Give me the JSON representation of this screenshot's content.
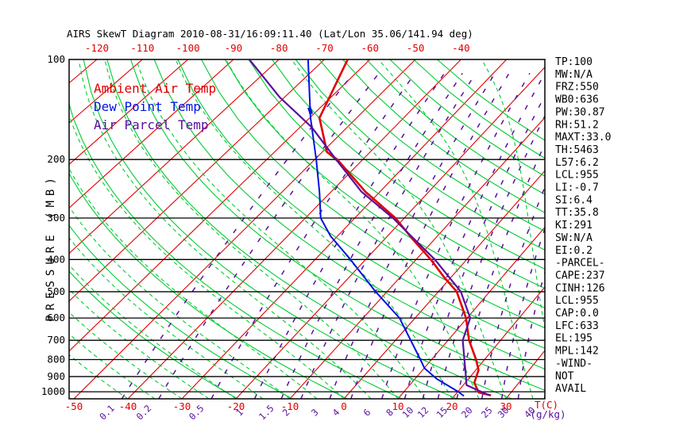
{
  "title": "AIRS SkewT Diagram 2010-08-31/16:09:11.40 (Lat/Lon 35.06/141.94 deg)",
  "colors": {
    "red": "#e00000",
    "green": "#00cc33",
    "purple": "#5a0f9e",
    "blue": "#0013e0",
    "black": "#000000"
  },
  "legend": {
    "items": [
      {
        "label": "Ambient Air Temp",
        "color": "red"
      },
      {
        "label": "Dew Point Temp",
        "color": "blue"
      },
      {
        "label": "Air Parcel Temp",
        "color": "purple"
      }
    ]
  },
  "axes": {
    "pressure_label": "PRESSURE (MB)",
    "pressure_ticks": [
      100,
      200,
      300,
      400,
      500,
      600,
      700,
      800,
      900,
      1000
    ],
    "temp_top_ticks": [
      -120,
      -110,
      -100,
      -90,
      -80,
      -70,
      -60,
      -50,
      -40
    ],
    "temp_bottom_ticks": [
      -50,
      -40,
      -30,
      -20,
      -10,
      0,
      10,
      20,
      30
    ],
    "temp_unit": "T(C)",
    "mixing_ratio_unit": "(g/kg)",
    "mixing_ratio_ticks": [
      0.1,
      0.2,
      0.5,
      1,
      1.5,
      2,
      3,
      4,
      6,
      8,
      10,
      12,
      15,
      20,
      25,
      30,
      40
    ]
  },
  "panel": {
    "items": [
      "TP:100",
      "MW:N/A",
      "FRZ:550",
      "WB0:636",
      "PW:30.87",
      "RH:51.2",
      "MAXT:33.0",
      "TH:5463",
      "L57:6.2",
      "LCL:955",
      "LI:-0.7",
      "SI:6.4",
      "TT:35.8",
      "KI:291",
      "SW:N/A",
      "EI:0.2",
      "-PARCEL-",
      "CAPE:237",
      "CINH:126",
      "LCL:955",
      "CAP:0.0",
      "LFC:633",
      "EL:195",
      "MPL:142",
      "-WIND-",
      "NOT",
      "AVAIL"
    ]
  },
  "chart_data": {
    "type": "line",
    "kind": "skew-t log-p thermodynamic diagram",
    "x_axis": {
      "label": "T(C)",
      "bottom_range": [
        -50,
        30
      ],
      "top_range": [
        -120,
        -40
      ],
      "unit": "degC"
    },
    "y_axis": {
      "label": "PRESSURE (MB)",
      "range": [
        100,
        1050
      ],
      "scale": "log",
      "unit": "mb"
    },
    "grid": {
      "isotherms_c": {
        "min": -160,
        "max": 40,
        "step": 10
      },
      "dry_adiabats_k": {
        "min": 250,
        "max": 440,
        "step": 10
      },
      "moist_adiabats_c": {
        "min": -40,
        "max": 40,
        "step": 5
      },
      "mixing_ratio_g_kg": [
        0.1,
        0.2,
        0.5,
        1,
        1.5,
        2,
        3,
        4,
        6,
        8,
        10,
        12,
        15,
        20,
        25,
        30,
        40
      ]
    },
    "series": [
      {
        "name": "Ambient Air Temp",
        "color": "red",
        "width": 2.6,
        "points_p_t": [
          [
            100,
            -64.9
          ],
          [
            150,
            -57.9
          ],
          [
            190,
            -49.0
          ],
          [
            200,
            -45.3
          ],
          [
            250,
            -33.0
          ],
          [
            300,
            -21.8
          ],
          [
            350,
            -14.0
          ],
          [
            400,
            -7.1
          ],
          [
            450,
            -1.6
          ],
          [
            500,
            3.6
          ],
          [
            600,
            9.8
          ],
          [
            700,
            14.0
          ],
          [
            800,
            18.4
          ],
          [
            860,
            20.5
          ],
          [
            940,
            21.7
          ],
          [
            1005,
            24.0
          ],
          [
            1025,
            26.7
          ]
        ]
      },
      {
        "name": "Dew Point Temp",
        "color": "blue",
        "width": 2.0,
        "points_p_t": [
          [
            100,
            -73.6
          ],
          [
            150,
            -59.8
          ],
          [
            200,
            -49.7
          ],
          [
            250,
            -42.4
          ],
          [
            300,
            -36.9
          ],
          [
            340,
            -31.4
          ],
          [
            400,
            -23.0
          ],
          [
            500,
            -12.2
          ],
          [
            600,
            -3.0
          ],
          [
            700,
            2.9
          ],
          [
            800,
            7.9
          ],
          [
            850,
            10.1
          ],
          [
            915,
            14.1
          ],
          [
            1000,
            20.1
          ],
          [
            1030,
            21.8
          ]
        ],
        "marker_segment_p_t": [
          [
            139.5,
            -62.4
          ],
          [
            146,
            -60.5
          ]
        ]
      },
      {
        "name": "Air Parcel Temp",
        "color": "purple",
        "width": 2.2,
        "points_p_t": [
          [
            100,
            -86.5
          ],
          [
            130,
            -71.0
          ],
          [
            160,
            -57.5
          ],
          [
            198,
            -46.1
          ],
          [
            250,
            -33.8
          ],
          [
            300,
            -22.3
          ],
          [
            400,
            -6.3
          ],
          [
            500,
            4.4
          ],
          [
            600,
            10.6
          ],
          [
            700,
            12.8
          ],
          [
            800,
            16.2
          ],
          [
            880,
            18.6
          ],
          [
            955,
            20.6
          ],
          [
            1025,
            26.4
          ]
        ]
      }
    ]
  }
}
